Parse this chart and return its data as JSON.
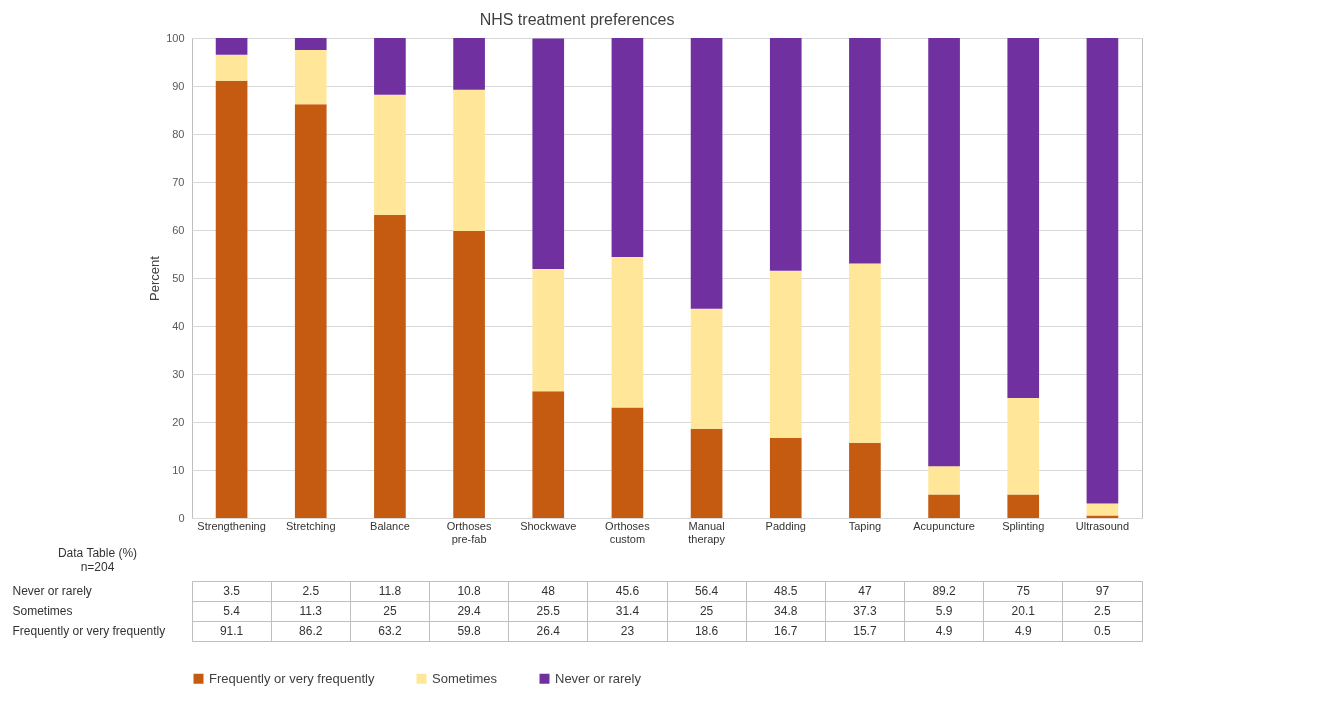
{
  "chart_data": {
    "type": "bar",
    "title": "NHS treatment preferences",
    "ylabel": "Percent",
    "categories": [
      "Strengthening",
      "Stretching",
      "Balance",
      "Orthoses pre-fab",
      "Shockwave",
      "Orthoses custom",
      "Manual therapy",
      "Padding",
      "Taping",
      "Acupuncture",
      "Splinting",
      "Ultrasound"
    ],
    "series": [
      {
        "name": "Frequently or very frequently",
        "color": "#c55a11",
        "values": [
          91.1,
          86.2,
          63.2,
          59.8,
          26.4,
          23,
          18.6,
          16.7,
          15.7,
          4.9,
          4.9,
          0.5
        ]
      },
      {
        "name": "Sometimes",
        "color": "#ffe699",
        "values": [
          5.4,
          11.3,
          25,
          29.4,
          25.5,
          31.4,
          25,
          34.8,
          37.3,
          5.9,
          20.1,
          2.5
        ]
      },
      {
        "name": "Never or rarely",
        "color": "#7030a0",
        "values": [
          3.5,
          2.5,
          11.8,
          10.8,
          48,
          45.6,
          56.4,
          48.5,
          47,
          89.2,
          75,
          97
        ]
      }
    ],
    "stacked": true,
    "ylim": [
      0,
      100
    ],
    "yticks": [
      0,
      10,
      20,
      30,
      40,
      50,
      60,
      70,
      80,
      90,
      100
    ],
    "grid": "y",
    "legend": "bottom",
    "data_labels": true,
    "annotations": [
      "Data Table (%)",
      "n=204"
    ]
  }
}
